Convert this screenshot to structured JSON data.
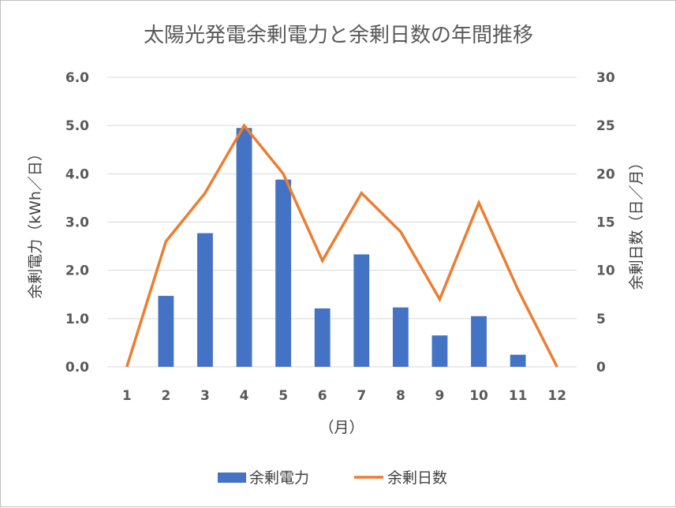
{
  "chart_data": {
    "type": "bar",
    "title": "太陽光発電余剰電力と余剰日数の年間推移",
    "xlabel": "（月）",
    "ylabel": "余剰電力（kWh／日）",
    "y2label": "余剰日数（日／月）",
    "categories": [
      "1",
      "2",
      "3",
      "4",
      "5",
      "6",
      "7",
      "8",
      "9",
      "10",
      "11",
      "12"
    ],
    "ylim": [
      0,
      6
    ],
    "y2lim": [
      0,
      30
    ],
    "yticks": [
      "0.0",
      "1.0",
      "2.0",
      "3.0",
      "4.0",
      "5.0",
      "6.0"
    ],
    "y2ticks": [
      "0",
      "5",
      "10",
      "15",
      "20",
      "25",
      "30"
    ],
    "grid": true,
    "legend_position": "bottom",
    "series": [
      {
        "name": "余剰電力",
        "type": "bar",
        "axis": "left",
        "color": "#4472c4",
        "values": [
          0,
          1.47,
          2.77,
          4.95,
          3.88,
          1.21,
          2.33,
          1.23,
          0.65,
          1.05,
          0.25,
          0
        ]
      },
      {
        "name": "余剰日数",
        "type": "line",
        "axis": "right",
        "color": "#ed7d31",
        "values": [
          0,
          13,
          18,
          25,
          20,
          11,
          18,
          14,
          7,
          17,
          8,
          0
        ]
      }
    ]
  }
}
